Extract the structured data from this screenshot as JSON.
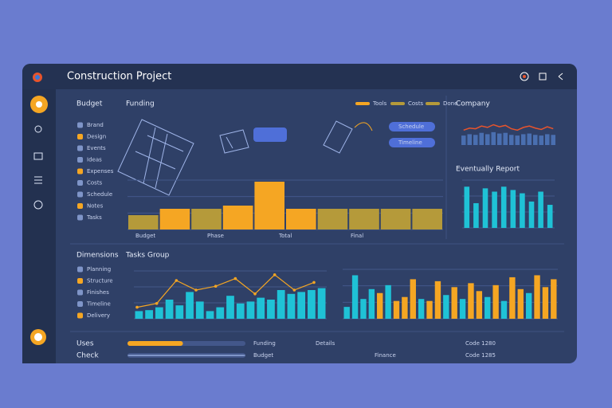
{
  "header": {
    "title": "Construction Project"
  },
  "budget_panel": {
    "title": "Budget",
    "items": [
      "Brand",
      "Design",
      "Events",
      "Ideas",
      "Expenses",
      "Costs",
      "Schedule",
      "Notes",
      "Tasks"
    ]
  },
  "dimensions_panel": {
    "title": "Dimensions",
    "items": [
      "Planning",
      "Structure",
      "Finishes",
      "Timeline",
      "Delivery"
    ]
  },
  "funding": {
    "title": "Funding",
    "legend": [
      "Tools",
      "Costs",
      "Done"
    ],
    "buttons": [
      "Schedule",
      "Timeline"
    ],
    "chart": {
      "type": "bar",
      "values": [
        18,
        26,
        26,
        30,
        60,
        26,
        26,
        26,
        26,
        26
      ],
      "colors": [
        "#b59a3a",
        "#f5a623",
        "#b59a3a",
        "#f5a623",
        "#f5a623",
        "#f5a623",
        "#b59a3a",
        "#b59a3a",
        "#b59a3a",
        "#b59a3a"
      ],
      "ylim": [
        0,
        62
      ],
      "labels": [
        "Budget",
        "Phase",
        "Total",
        "Final"
      ]
    }
  },
  "company": {
    "title": "Company",
    "chart": {
      "type": "line",
      "values": [
        22,
        25,
        24,
        28,
        26,
        30,
        27,
        29,
        24,
        22,
        26,
        28,
        25,
        23,
        27,
        24
      ],
      "bars": [
        14,
        16,
        15,
        18,
        16,
        19,
        17,
        18,
        15,
        14,
        16,
        17,
        15,
        14,
        16,
        15
      ],
      "ylim": [
        0,
        40
      ],
      "color": "#e8542c",
      "bar_color": "#4a6fb0"
    }
  },
  "report": {
    "title": "Eventually Report",
    "chart": {
      "type": "bar",
      "values": [
        50,
        30,
        48,
        44,
        50,
        46,
        42,
        32,
        44,
        28
      ],
      "color": "#1fc2d6",
      "ylim": [
        0,
        58
      ]
    }
  },
  "tasks": {
    "title": "Tasks Group",
    "chart": {
      "type": "bar",
      "values": [
        8,
        9,
        12,
        20,
        14,
        28,
        18,
        8,
        12,
        24,
        16,
        18,
        22,
        20,
        30,
        26,
        28,
        30,
        32
      ],
      "color": "#1fc2d6",
      "line": [
        12,
        16,
        40,
        30,
        34,
        42,
        26,
        46,
        30,
        38
      ],
      "line_color": "#f5a623",
      "ylim": [
        0,
        50
      ]
    }
  },
  "output": {
    "chart": {
      "type": "bar",
      "values": [
        12,
        44,
        20,
        30,
        26,
        34,
        18,
        22,
        40,
        20,
        18,
        38,
        24,
        32,
        20,
        36,
        28,
        22,
        34,
        18,
        42,
        30,
        26,
        44,
        32,
        40
      ],
      "colors": [
        "#1fc2d6",
        "#1fc2d6",
        "#1fc2d6",
        "#1fc2d6",
        "#f5a623",
        "#1fc2d6",
        "#f5a623",
        "#f5a623",
        "#f5a623",
        "#1fc2d6",
        "#f5a623",
        "#f5a623",
        "#1fc2d6",
        "#f5a623",
        "#1fc2d6",
        "#f5a623",
        "#f5a623",
        "#1fc2d6",
        "#f5a623",
        "#1fc2d6",
        "#f5a623",
        "#f5a623",
        "#1fc2d6",
        "#f5a623",
        "#f5a623",
        "#f5a623"
      ],
      "ylim": [
        0,
        50
      ]
    }
  },
  "footer": {
    "labels": [
      "Uses",
      "Check"
    ],
    "progress": [
      47,
      100
    ],
    "progress_max": 100,
    "items": [
      "Funding",
      "Budget",
      "Details",
      "Finance",
      "Code 1280",
      "Code 1285"
    ]
  }
}
